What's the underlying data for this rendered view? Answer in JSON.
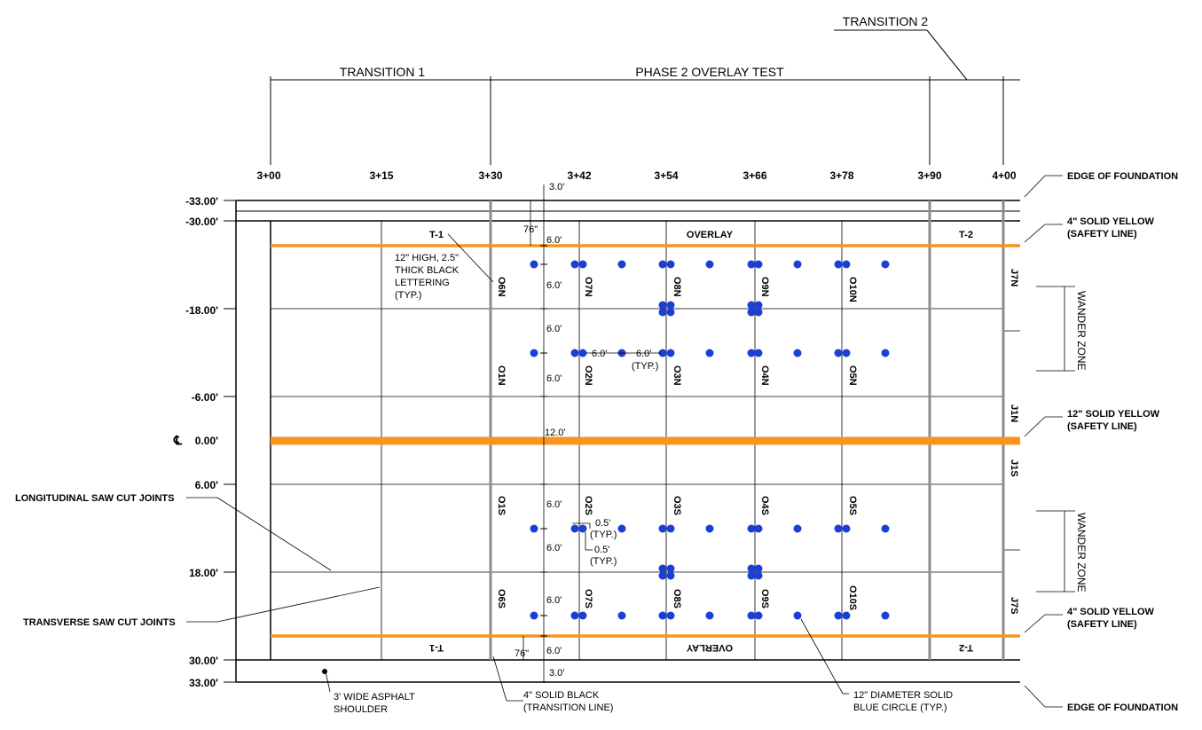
{
  "header": {
    "transition1": "TRANSITION 1",
    "phase2": "PHASE 2 OVERLAY TEST",
    "transition2": "TRANSITION 2"
  },
  "stations": [
    "3+00",
    "3+15",
    "3+30",
    "3+42",
    "3+54",
    "3+66",
    "3+78",
    "3+90",
    "4+00"
  ],
  "offsets": [
    "-33.00'",
    "-30.00'",
    "-18.00'",
    "-6.00'",
    "0.00'",
    "6.00'",
    "18.00'",
    "30.00'",
    "33.00'"
  ],
  "centerline_symbol": "℄",
  "panels": {
    "north": [
      "O6N",
      "O7N",
      "O8N",
      "O9N",
      "O10N",
      "O1N",
      "O2N",
      "O3N",
      "O4N",
      "O5N"
    ],
    "south": [
      "O1S",
      "O2S",
      "O3S",
      "O4S",
      "O5S",
      "O6S",
      "O7S",
      "O8S",
      "O9S",
      "O10S"
    ],
    "joints": [
      "J7N",
      "J1N",
      "J1S",
      "J7S"
    ],
    "markers_top": [
      "T-1",
      "OVERLAY",
      "T-2"
    ],
    "markers_bottom": [
      "T-1",
      "OVERLAY",
      "T-2"
    ]
  },
  "dimensions": {
    "d3_top": "3.0'",
    "d76_top": "76\"",
    "d6": "6.0'",
    "d12": "12.0'",
    "d76_bottom": "76\"",
    "d3_bottom": "3.0'",
    "h6a": "6.0'",
    "h6b": "6.0'",
    "typ": "(TYP.)",
    "d05a": "0.5'",
    "d05b": "0.5'"
  },
  "annotations": {
    "lettering": [
      "12\" HIGH, 2.5\"",
      "THICK BLACK",
      "LETTERING",
      "(TYP.)"
    ],
    "edge_top": "EDGE OF FOUNDATION",
    "edge_bottom": "EDGE OF FOUNDATION",
    "yellow4_top": [
      "4\" SOLID YELLOW",
      "(SAFETY LINE)"
    ],
    "yellow12": [
      "12\" SOLID YELLOW",
      "(SAFETY LINE)"
    ],
    "yellow4_bottom": [
      "4\" SOLID YELLOW",
      "(SAFETY LINE)"
    ],
    "wander_zone": "WANDER ZONE",
    "longitudinal": "LONGITUDINAL  SAW CUT JOINTS",
    "transverse": "TRANSVERSE SAW CUT JOINTS",
    "shoulder": [
      "3' WIDE ASPHALT",
      "SHOULDER"
    ],
    "black_line": [
      "4\" SOLID BLACK",
      "(TRANSITION LINE)"
    ],
    "blue_circle": [
      "12\" DIAMETER SOLID",
      "BLUE CIRCLE (TYP.)"
    ]
  },
  "colors": {
    "orange": "#f7941d",
    "blue": "#1a3fd6",
    "gray_line": "#8c8c8c",
    "label_gray": "#7f7f7f"
  }
}
